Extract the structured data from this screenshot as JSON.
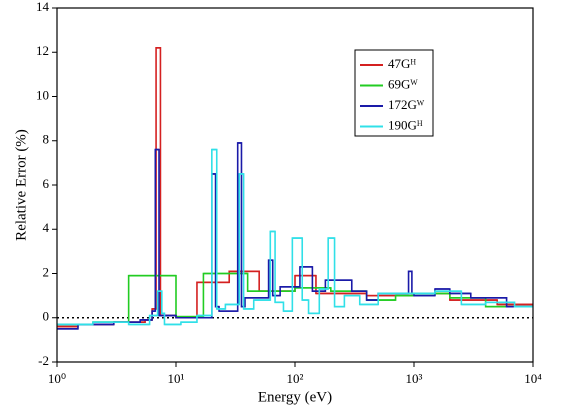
{
  "chart_data": {
    "type": "step",
    "x_label": "Energy (eV)",
    "y_label": "Relative Error (%)",
    "xscale": "log",
    "xlim": [
      1,
      10000
    ],
    "ylim": [
      -2,
      14
    ],
    "xticks": [
      {
        "value": 1,
        "label": "10⁰"
      },
      {
        "value": 10,
        "label": "10¹"
      },
      {
        "value": 100,
        "label": "10²"
      },
      {
        "value": 1000,
        "label": "10³"
      },
      {
        "value": 10000,
        "label": "10⁴"
      }
    ],
    "yticks": [
      -2,
      0,
      2,
      4,
      6,
      8,
      10,
      12,
      14
    ],
    "zero_line": true,
    "legend": "upper right",
    "series": [
      {
        "name": "47Gᴴ",
        "color": "#d42020",
        "x": [
          1,
          1.5,
          3,
          5.5,
          6.3,
          6.8,
          7.4,
          10,
          15,
          28,
          50,
          100,
          150,
          400,
          1000,
          2000,
          5000
        ],
        "values": [
          -0.4,
          -0.3,
          -0.2,
          -0.1,
          0.4,
          12.2,
          0.1,
          0,
          1.6,
          2.1,
          1.2,
          1.9,
          1.1,
          1.0,
          1.1,
          0.8,
          0.6
        ]
      },
      {
        "name": "69Gᵂ",
        "color": "#22cc22",
        "x": [
          1,
          2,
          4,
          10,
          17,
          40,
          100,
          200,
          400,
          700,
          1000,
          2000,
          4000
        ],
        "values": [
          -0.3,
          -0.2,
          1.9,
          0.05,
          2.0,
          1.2,
          1.35,
          1.2,
          0.8,
          1.0,
          1.1,
          0.9,
          0.5
        ]
      },
      {
        "name": "172Gᵂ",
        "color": "#1a1aa8",
        "x": [
          1,
          1.5,
          3,
          5,
          6.3,
          6.7,
          7.2,
          10,
          20,
          21.5,
          23,
          33,
          35.5,
          38,
          60,
          65,
          75,
          110,
          140,
          180,
          300,
          400,
          500,
          900,
          960,
          1000,
          1500,
          2000,
          3000,
          6000
        ],
        "values": [
          -0.5,
          -0.3,
          -0.2,
          -0.1,
          0.3,
          7.6,
          0.1,
          0.0,
          6.5,
          0.5,
          0.3,
          7.9,
          0.5,
          0.9,
          2.6,
          1.0,
          1.4,
          2.3,
          1.2,
          1.7,
          1.2,
          0.8,
          1.1,
          2.1,
          1.1,
          1.0,
          1.3,
          1.1,
          0.9,
          0.5
        ]
      },
      {
        "name": "190Gᴴ",
        "color": "#30e0e8",
        "x": [
          1,
          2,
          4,
          6,
          7,
          7.6,
          8,
          11,
          15,
          20,
          22,
          26,
          34,
          37,
          45,
          62,
          68,
          80,
          95,
          115,
          130,
          160,
          190,
          215,
          260,
          350,
          500,
          800,
          1100,
          1500,
          2500,
          4000,
          7000
        ],
        "values": [
          -0.3,
          -0.2,
          -0.3,
          0.1,
          1.2,
          0.2,
          -0.3,
          -0.2,
          0.1,
          7.6,
          0.4,
          0.6,
          6.5,
          0.4,
          0.8,
          3.9,
          0.7,
          0.3,
          3.6,
          0.8,
          0.2,
          1.3,
          3.6,
          0.5,
          1.0,
          0.6,
          1.1,
          1.1,
          1.1,
          1.2,
          0.6,
          0.7,
          0.5
        ]
      }
    ]
  }
}
